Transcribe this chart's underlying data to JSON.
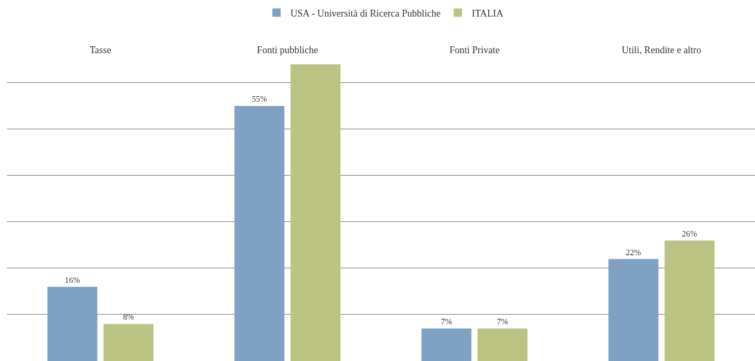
{
  "chart_data": {
    "type": "bar",
    "categories": [
      "Tasse",
      "Fonti pubbliche",
      "Fonti Private",
      "Utili, Rendite e altro"
    ],
    "series": [
      {
        "name": "USA - Università di Ricerca Pubbliche",
        "color": "#7ea1c4",
        "values": [
          16,
          55,
          7,
          22
        ],
        "value_labels": [
          "16%",
          "55%",
          "7%",
          "22%"
        ]
      },
      {
        "name": "ITALIA",
        "color": "#bbc383",
        "values": [
          8,
          64,
          7,
          26
        ],
        "value_labels": [
          "8%",
          null,
          "7%",
          "26%"
        ]
      }
    ],
    "ylim": [
      0,
      64
    ],
    "yticks": [
      {
        "value": 10,
        "label": null
      },
      {
        "value": 20,
        "label": null
      },
      {
        "value": 30,
        "label": null
      },
      {
        "value": 40,
        "label": null
      },
      {
        "value": 50,
        "label": null
      },
      {
        "value": 60,
        "label": null
      }
    ],
    "tick_labels": "x",
    "grid": "y",
    "legend": "top"
  }
}
